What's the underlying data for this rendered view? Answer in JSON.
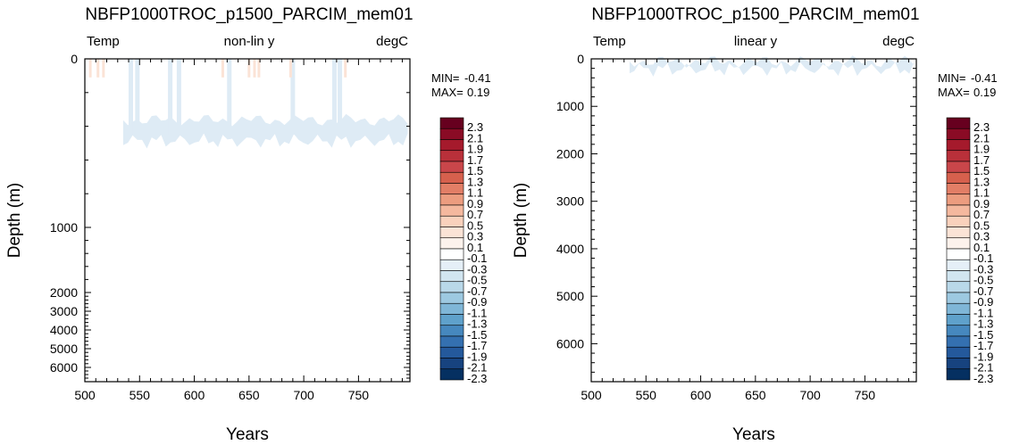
{
  "chart_data": [
    {
      "type": "heatmap",
      "title": "NBFP1000TROC_p1500_PARCIM_mem01",
      "subtitle_left": "Temp",
      "subtitle_center": "non-lin y",
      "subtitle_right": "degC",
      "xlabel": "Years",
      "ylabel": "Depth (m)",
      "xlim": [
        500,
        797
      ],
      "x_ticks": [
        500,
        550,
        600,
        650,
        700,
        750
      ],
      "y_scale": "non-linear",
      "y_ticks": [
        0,
        1000,
        2000,
        3000,
        4000,
        5000,
        6000
      ],
      "stats": {
        "min_label": "MIN=",
        "min_value": "-0.41",
        "max_label": "MAX=",
        "max_value": "0.19"
      },
      "features": [
        {
          "desc": "weak negative band",
          "x_range": [
            535,
            795
          ],
          "depth_range": [
            300,
            560
          ],
          "color": "#deebf5"
        },
        {
          "desc": "thin negative columns reaching the surface",
          "x_values": [
            542,
            548,
            578,
            586,
            632,
            690,
            728,
            733
          ],
          "color": "#deebf5"
        },
        {
          "desc": "weak positive streaks near surface",
          "x_values": [
            505,
            512,
            517,
            626,
            650,
            655,
            659,
            688,
            738
          ],
          "depth_range": [
            0,
            110
          ],
          "color": "#fbe3d6"
        }
      ]
    },
    {
      "type": "heatmap",
      "title": "NBFP1000TROC_p1500_PARCIM_mem01",
      "subtitle_left": "Temp",
      "subtitle_center": "linear y",
      "subtitle_right": "degC",
      "xlabel": "Years",
      "ylabel": "Depth (m)",
      "xlim": [
        500,
        797
      ],
      "x_ticks": [
        500,
        550,
        600,
        650,
        700,
        750
      ],
      "y_scale": "linear",
      "ylim": [
        0,
        6800
      ],
      "y_ticks": [
        0,
        1000,
        2000,
        3000,
        4000,
        5000,
        6000
      ],
      "stats": {
        "min_label": "MIN=",
        "min_value": "-0.41",
        "max_label": "MAX=",
        "max_value": "0.19"
      },
      "features": [
        {
          "desc": "weak negative surface band",
          "x_range": [
            535,
            795
          ],
          "depth_range": [
            0,
            250
          ],
          "color": "#deebf5"
        }
      ]
    }
  ],
  "colorbar": {
    "labels": [
      "2.3",
      "2.1",
      "1.9",
      "1.7",
      "1.5",
      "1.3",
      "1.1",
      "0.9",
      "0.7",
      "0.5",
      "0.3",
      "0.1",
      "-0.1",
      "-0.3",
      "-0.5",
      "-0.7",
      "-0.9",
      "-1.1",
      "-1.3",
      "-1.5",
      "-1.7",
      "-1.9",
      "-2.1",
      "-2.3"
    ],
    "colors": [
      "#67001f",
      "#8a0b25",
      "#a51a2c",
      "#b9303a",
      "#c9464a",
      "#d6604d",
      "#e27e66",
      "#ec9c7f",
      "#f4b89e",
      "#f9d1bc",
      "#fbe3d6",
      "#fdf2ec",
      "#ffffff",
      "#e5eff7",
      "#d1e5f0",
      "#b9d8e9",
      "#9dc9e1",
      "#7fb6d7",
      "#5fa1cb",
      "#4688be",
      "#3470b0",
      "#24599c",
      "#17437f",
      "#053061"
    ]
  }
}
